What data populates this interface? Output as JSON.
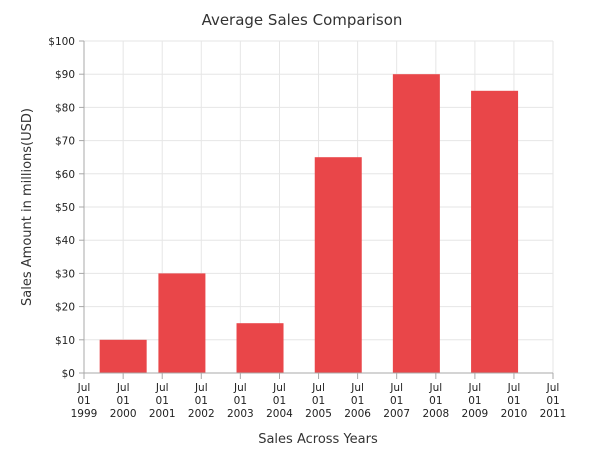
{
  "chart_data": {
    "type": "bar",
    "title": "Average Sales Comparison",
    "xlabel": "Sales Across Years",
    "ylabel": "Sales Amount in millions(USD)",
    "x_axis": {
      "type": "date",
      "range": [
        "1999-07-01",
        "2011-07-01"
      ],
      "tick_labels": [
        [
          "Jul",
          "01",
          "1999"
        ],
        [
          "Jul",
          "01",
          "2000"
        ],
        [
          "Jul",
          "01",
          "2001"
        ],
        [
          "Jul",
          "01",
          "2002"
        ],
        [
          "Jul",
          "01",
          "2003"
        ],
        [
          "Jul",
          "01",
          "2004"
        ],
        [
          "Jul",
          "01",
          "2005"
        ],
        [
          "Jul",
          "01",
          "2006"
        ],
        [
          "Jul",
          "01",
          "2007"
        ],
        [
          "Jul",
          "01",
          "2008"
        ],
        [
          "Jul",
          "01",
          "2009"
        ],
        [
          "Jul",
          "01",
          "2010"
        ],
        [
          "Jul",
          "01",
          "2011"
        ]
      ]
    },
    "y_axis": {
      "range": [
        0,
        100
      ],
      "interval": 10,
      "tick_labels": [
        "$0",
        "$10",
        "$20",
        "$30",
        "$40",
        "$50",
        "$60",
        "$70",
        "$80",
        "$90",
        "$100"
      ]
    },
    "series": [
      {
        "color": "#e94649",
        "points": [
          {
            "x": "2000-07-01",
            "y": 10
          },
          {
            "x": "2002-01-01",
            "y": 30
          },
          {
            "x": "2004-01-01",
            "y": 15
          },
          {
            "x": "2006-01-01",
            "y": 65
          },
          {
            "x": "2008-01-01",
            "y": 90
          },
          {
            "x": "2010-01-01",
            "y": 85
          }
        ]
      }
    ],
    "grid": true
  }
}
